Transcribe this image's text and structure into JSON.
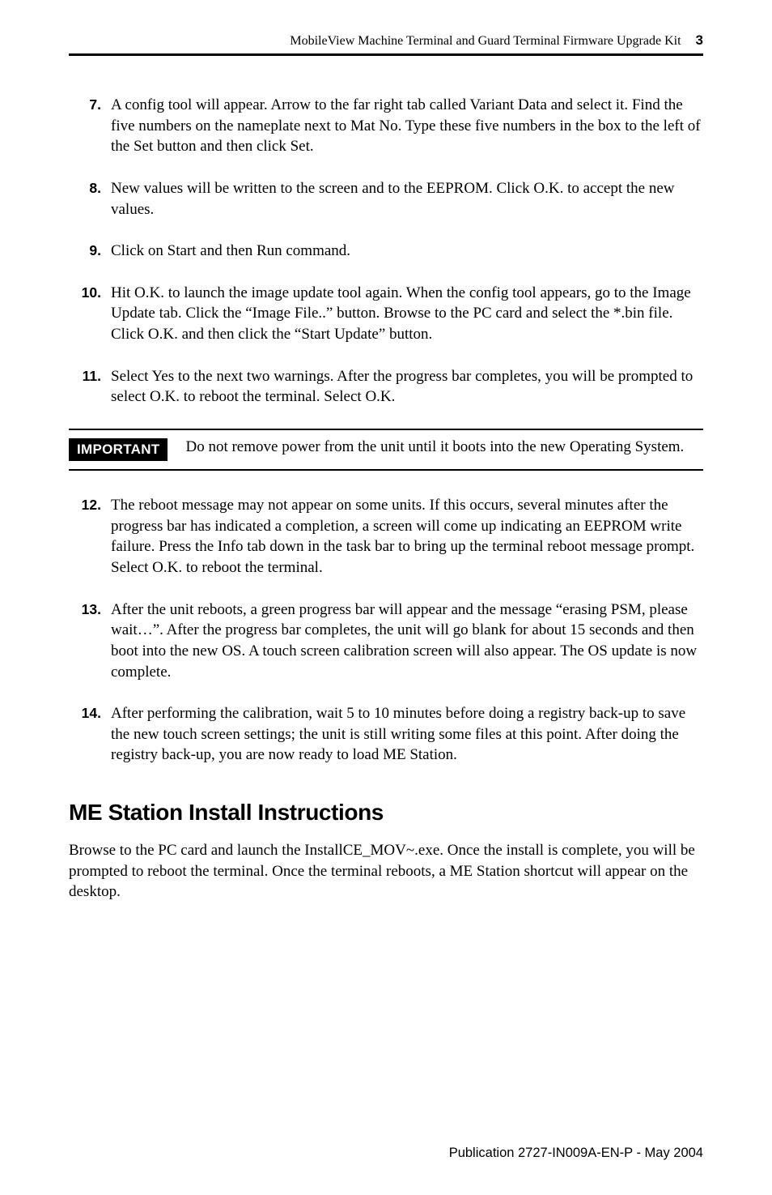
{
  "header": {
    "title": "MobileView Machine Terminal and Guard Terminal Firmware Upgrade Kit",
    "page_number": "3"
  },
  "steps_a": [
    {
      "num": "7.",
      "text": "A config tool will appear.  Arrow to the far right tab called Variant Data and select it.  Find the five numbers on the nameplate next to Mat No.  Type these five numbers in the box to the left of the Set button and then click Set."
    },
    {
      "num": "8.",
      "text": "New values will be written to the screen and to the EEPROM.  Click O.K. to accept the new values."
    },
    {
      "num": "9.",
      "text": "Click on Start and then Run command."
    },
    {
      "num": "10.",
      "text": "Hit O.K. to launch the image update tool again.  When the config tool appears, go to the Image Update tab.  Click the “Image File..” button.  Browse to the PC card and select the *.bin file.  Click O.K. and then click the “Start Update” button."
    },
    {
      "num": "11.",
      "text": "Select Yes to the next two warnings.  After the progress bar completes, you will be prompted to select O.K. to reboot the terminal.  Select O.K."
    }
  ],
  "important": {
    "label": "IMPORTANT",
    "text": "Do not remove power from the unit until it boots into the new Operating System."
  },
  "steps_b": [
    {
      "num": "12.",
      "text": "The reboot message may not appear on some units.  If this occurs, several minutes after the progress bar has indicated a completion, a screen will come up indicating an EEPROM write failure.  Press the Info tab down in the task bar to bring up the terminal reboot message prompt.  Select O.K. to reboot the terminal."
    },
    {
      "num": "13.",
      "text": "After the unit reboots, a green progress bar will appear and the message “erasing PSM, please wait…”.  After the progress bar completes, the unit will go blank for about 15 seconds and then boot into the new OS.  A touch screen calibration screen will also appear.  The OS update is now complete."
    },
    {
      "num": "14.",
      "text": "After performing the calibration, wait 5 to 10 minutes before doing a registry back-up to save the new touch screen settings; the unit is still writing some files at this point.  After doing the registry back-up, you are now ready to load ME Station."
    }
  ],
  "section": {
    "heading": "ME Station Install Instructions",
    "body": "Browse to the PC card and launch the InstallCE_MOV~.exe.  Once the install is complete, you will be prompted to reboot the terminal.  Once the terminal reboots, a ME Station shortcut will appear on the desktop."
  },
  "footer": "Publication 2727-IN009A-EN-P - May 2004"
}
